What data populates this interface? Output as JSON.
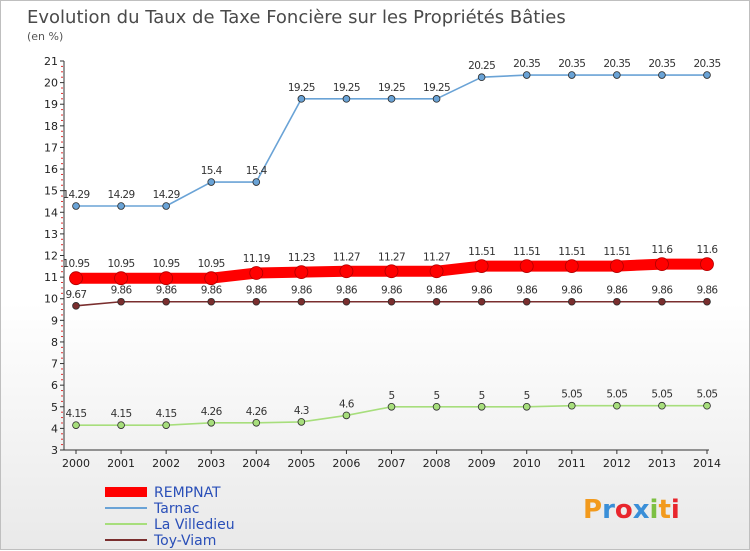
{
  "chart_data": {
    "type": "line",
    "title": "Evolution du Taux de Taxe Foncière sur les Propriétés Bâties",
    "subtitle": "(en %)",
    "xlabel": "",
    "ylabel": "",
    "ylim": [
      3,
      21
    ],
    "yticks": [
      "3",
      "4",
      "5",
      "6",
      "7",
      "8",
      "9",
      "10",
      "11",
      "12",
      "13",
      "14",
      "15",
      "16",
      "17",
      "18",
      "19",
      "20",
      "21"
    ],
    "x": [
      "2000",
      "2001",
      "2002",
      "2003",
      "2004",
      "2005",
      "2006",
      "2007",
      "2008",
      "2009",
      "2010",
      "2011",
      "2012",
      "2013",
      "2014"
    ],
    "grid": false,
    "legend_position": "bottom-left",
    "series": [
      {
        "name": "REMPNAT",
        "color": "#ff0000",
        "values": [
          10.95,
          10.95,
          10.95,
          10.95,
          11.19,
          11.23,
          11.27,
          11.27,
          11.27,
          11.51,
          11.51,
          11.51,
          11.51,
          11.6,
          11.6
        ],
        "labels": [
          "10.95",
          "10.95",
          "10.95",
          "10.95",
          "11.19",
          "11.23",
          "11.27",
          "11.27",
          "11.27",
          "11.51",
          "11.51",
          "11.51",
          "11.51",
          "11.6",
          "11.6"
        ]
      },
      {
        "name": "Tarnac",
        "color": "#6aa3d6",
        "values": [
          14.29,
          14.29,
          14.29,
          15.4,
          15.4,
          19.25,
          19.25,
          19.25,
          19.25,
          20.25,
          20.35,
          20.35,
          20.35,
          20.35,
          20.35
        ],
        "labels": [
          "14.29",
          "14.29",
          "14.29",
          "15.4",
          "15.4",
          "19.25",
          "19.25",
          "19.25",
          "19.25",
          "20.25",
          "20.35",
          "20.35",
          "20.35",
          "20.35",
          "20.35"
        ]
      },
      {
        "name": "La Villedieu",
        "color": "#a7de7c",
        "values": [
          4.15,
          4.15,
          4.15,
          4.26,
          4.26,
          4.3,
          4.6,
          5,
          5,
          5,
          5,
          5.05,
          5.05,
          5.05,
          5.05
        ],
        "labels": [
          "4.15",
          "4.15",
          "4.15",
          "4.26",
          "4.26",
          "4.3",
          "4.6",
          "5",
          "5",
          "5",
          "5",
          "5.05",
          "5.05",
          "5.05",
          "5.05"
        ]
      },
      {
        "name": "Toy-Viam",
        "color": "#7a2e2e",
        "values": [
          9.67,
          9.86,
          9.86,
          9.86,
          9.86,
          9.86,
          9.86,
          9.86,
          9.86,
          9.86,
          9.86,
          9.86,
          9.86,
          9.86,
          9.86
        ],
        "labels": [
          "9.67",
          "9.86",
          "9.86",
          "9.86",
          "9.86",
          "9.86",
          "9.86",
          "9.86",
          "9.86",
          "9.86",
          "9.86",
          "9.86",
          "9.86",
          "9.86",
          "9.86"
        ]
      }
    ]
  },
  "logo": {
    "text": "Proxiti",
    "colors": [
      "#f29a1d",
      "#3a8fd8",
      "#e8262d",
      "#3a8fd8",
      "#7dc043",
      "#f29a1d",
      "#e8262d"
    ]
  }
}
